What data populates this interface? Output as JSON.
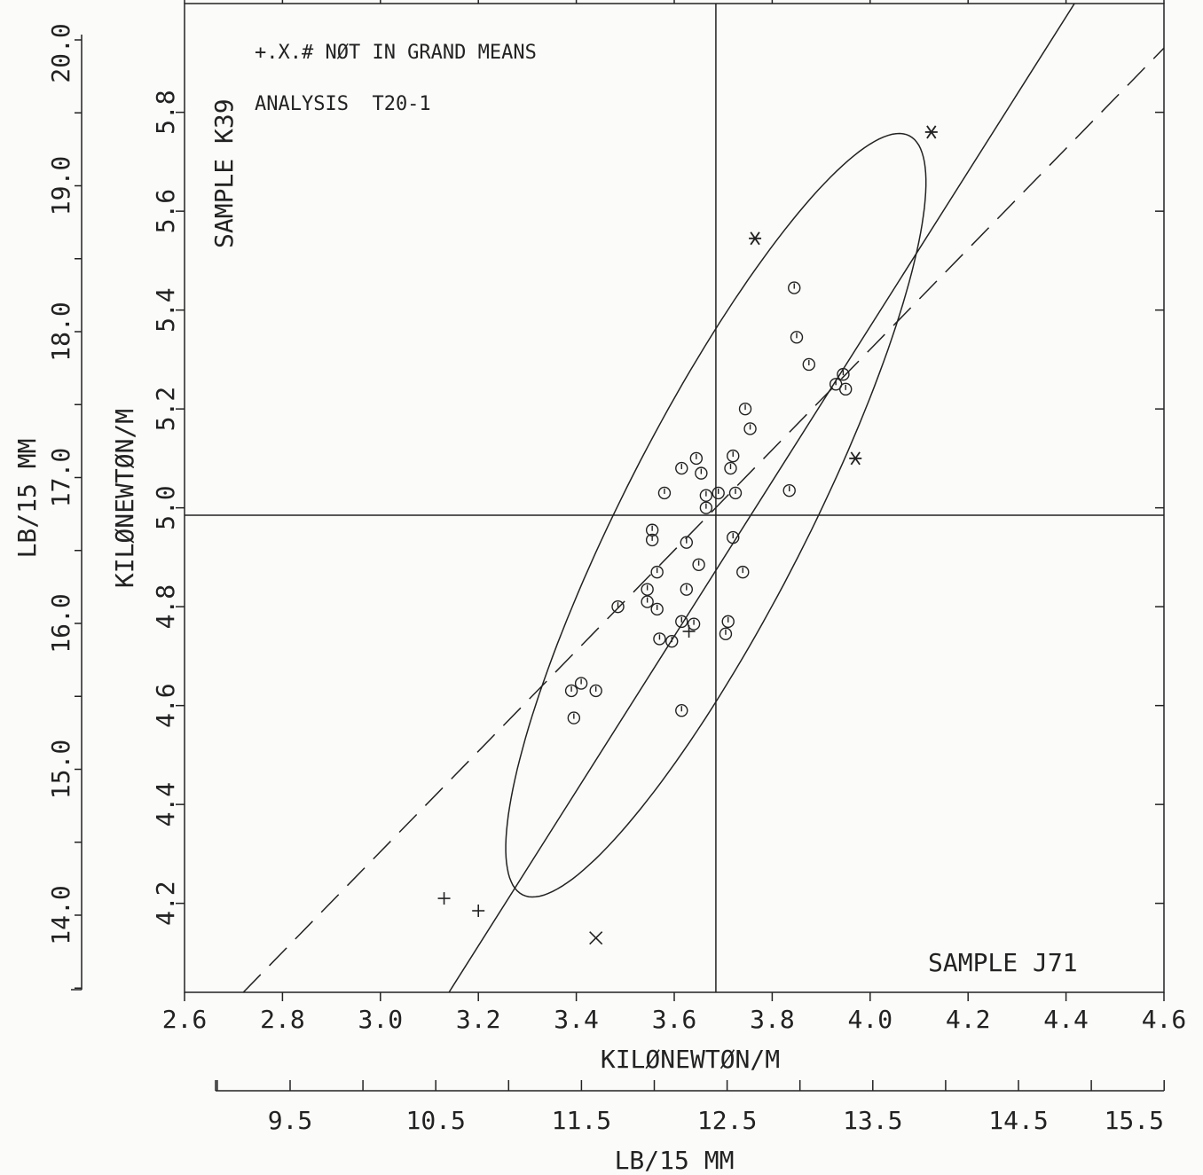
{
  "chart_data": {
    "type": "scatter",
    "annotations": {
      "legend_note": "+.X.# NØT IN GRAND MEANS",
      "analysis": "ANALYSIS  T20-1",
      "sample_y": "SAMPLE K39",
      "sample_x": "SAMPLE J71"
    },
    "x_axis": {
      "label": "KILØNEWTØN/M",
      "range": [
        2.6,
        4.6
      ],
      "ticks": [
        2.6,
        2.8,
        3.0,
        3.2,
        3.4,
        3.6,
        3.8,
        4.0,
        4.2,
        4.4,
        4.6
      ],
      "tick_labels": [
        "2.6",
        "2.8",
        "3.0",
        "3.2",
        "3.4",
        "3.6",
        "3.8",
        "4.0",
        "4.2",
        "4.4",
        "4.6"
      ]
    },
    "y_axis": {
      "label": "KILØNEWTØN/M",
      "range": [
        4.02,
        6.02
      ],
      "ticks": [
        4.2,
        4.4,
        4.6,
        4.8,
        5.0,
        5.2,
        5.4,
        5.6,
        5.8
      ],
      "tick_labels": [
        "4.2",
        "4.4",
        "4.6",
        "4.8",
        "5.0",
        "5.2",
        "5.4",
        "5.6",
        "5.8"
      ]
    },
    "x2_axis": {
      "label": "LB/15 MM",
      "ticks": [
        9.5,
        10.5,
        11.5,
        12.5,
        13.5,
        14.5,
        15.5
      ],
      "tick_labels": [
        "9.5",
        "10.5",
        "11.5",
        "12.5",
        "13.5",
        "14.5",
        "15.5"
      ]
    },
    "y2_axis": {
      "label": "LB/15 MM",
      "ticks": [
        14.0,
        15.0,
        16.0,
        17.0,
        18.0,
        19.0,
        20.0
      ],
      "tick_labels": [
        "14.0",
        "15.0",
        "16.0",
        "17.0",
        "18.0",
        "19.0",
        "20.0"
      ]
    },
    "grand_mean": {
      "x": 3.685,
      "y": 4.985
    },
    "ellipse": {
      "cx": 3.685,
      "cy": 4.985,
      "semi_major": 0.87,
      "semi_minor": 0.188,
      "angle_deg": 63
    },
    "solid_line": {
      "x1": 3.14,
      "y1": 4.02,
      "x2": 4.43,
      "y2": 6.04
    },
    "dashed_line": {
      "x1": 2.72,
      "y1": 4.02,
      "x2": 4.6,
      "y2": 5.93
    },
    "points": [
      {
        "x": 3.39,
        "y": 4.63
      },
      {
        "x": 3.41,
        "y": 4.645
      },
      {
        "x": 3.44,
        "y": 4.63
      },
      {
        "x": 3.395,
        "y": 4.575
      },
      {
        "x": 3.485,
        "y": 4.8
      },
      {
        "x": 3.545,
        "y": 4.81
      },
      {
        "x": 3.545,
        "y": 4.835
      },
      {
        "x": 3.565,
        "y": 4.795
      },
      {
        "x": 3.555,
        "y": 4.935
      },
      {
        "x": 3.555,
        "y": 4.955
      },
      {
        "x": 3.565,
        "y": 4.87
      },
      {
        "x": 3.57,
        "y": 4.735
      },
      {
        "x": 3.595,
        "y": 4.73
      },
      {
        "x": 3.58,
        "y": 5.03
      },
      {
        "x": 3.615,
        "y": 5.08
      },
      {
        "x": 3.615,
        "y": 4.77
      },
      {
        "x": 3.615,
        "y": 4.59
      },
      {
        "x": 3.625,
        "y": 4.93
      },
      {
        "x": 3.625,
        "y": 4.835
      },
      {
        "x": 3.64,
        "y": 4.765
      },
      {
        "x": 3.645,
        "y": 5.1
      },
      {
        "x": 3.65,
        "y": 4.885
      },
      {
        "x": 3.655,
        "y": 5.07
      },
      {
        "x": 3.665,
        "y": 5.025
      },
      {
        "x": 3.665,
        "y": 5.0
      },
      {
        "x": 3.69,
        "y": 5.03
      },
      {
        "x": 3.705,
        "y": 4.745
      },
      {
        "x": 3.71,
        "y": 4.77
      },
      {
        "x": 3.715,
        "y": 5.08
      },
      {
        "x": 3.72,
        "y": 5.105
      },
      {
        "x": 3.72,
        "y": 4.94
      },
      {
        "x": 3.725,
        "y": 5.03
      },
      {
        "x": 3.74,
        "y": 4.87
      },
      {
        "x": 3.745,
        "y": 5.2
      },
      {
        "x": 3.755,
        "y": 5.16
      },
      {
        "x": 3.835,
        "y": 5.035
      },
      {
        "x": 3.845,
        "y": 5.445
      },
      {
        "x": 3.85,
        "y": 5.345
      },
      {
        "x": 3.875,
        "y": 5.29
      },
      {
        "x": 3.93,
        "y": 5.25
      },
      {
        "x": 3.945,
        "y": 5.27
      },
      {
        "x": 3.95,
        "y": 5.24
      }
    ],
    "excluded": [
      {
        "marker": "+",
        "x": 3.13,
        "y": 4.21
      },
      {
        "marker": "+",
        "x": 3.2,
        "y": 4.185
      },
      {
        "marker": "+",
        "x": 3.63,
        "y": 4.75
      },
      {
        "marker": "x",
        "x": 3.44,
        "y": 4.13
      },
      {
        "marker": "*",
        "x": 3.765,
        "y": 5.545
      },
      {
        "marker": "*",
        "x": 3.97,
        "y": 5.1
      },
      {
        "marker": "*",
        "x": 4.125,
        "y": 5.76
      }
    ]
  }
}
